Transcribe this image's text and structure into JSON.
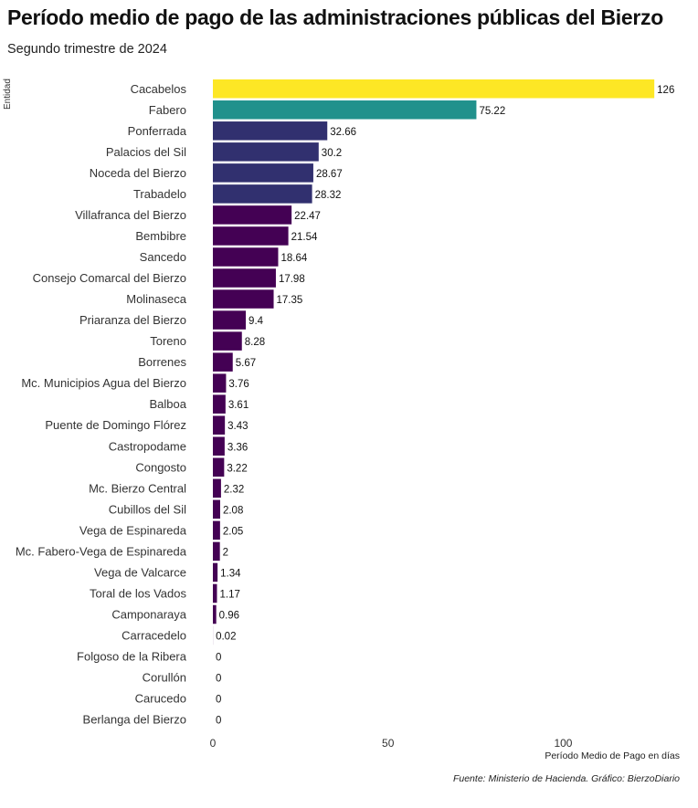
{
  "chart_data": {
    "type": "bar",
    "orientation": "horizontal",
    "title": "Período medio de pago de las administraciones públicas del Bierzo",
    "subtitle": "Segundo trimestre de 2024",
    "ylabel": "Entidad",
    "xlabel": "Período Medio de Pago en días",
    "caption": "Fuente: Ministerio de Hacienda. Gráfico: BierzoDiario",
    "xlim": [
      0,
      127
    ],
    "xticks": [
      0,
      50,
      100
    ],
    "grid": false,
    "categories": [
      "Cacabelos",
      "Fabero",
      "Ponferrada",
      "Palacios del Sil",
      "Noceda del Bierzo",
      "Trabadelo",
      "Villafranca del Bierzo",
      "Bembibre",
      "Sancedo",
      "Consejo Comarcal del Bierzo",
      "Molinaseca",
      "Priaranza del Bierzo",
      "Toreno",
      "Borrenes",
      "Mc. Municipios Agua del Bierzo",
      "Balboa",
      "Puente de Domingo Flórez",
      "Castropodame",
      "Congosto",
      "Mc. Bierzo Central",
      "Cubillos del Sil",
      "Vega de Espinareda",
      "Mc. Fabero-Vega de Espinareda",
      "Vega de Valcarce",
      "Toral de los Vados",
      "Camponaraya",
      "Carracedelo",
      "Folgoso de la Ribera",
      "Corullón",
      "Carucedo",
      "Berlanga del Bierzo"
    ],
    "values": [
      126,
      75.22,
      32.66,
      30.2,
      28.67,
      28.32,
      22.47,
      21.54,
      18.64,
      17.98,
      17.35,
      9.4,
      8.28,
      5.67,
      3.76,
      3.61,
      3.43,
      3.36,
      3.22,
      2.32,
      2.08,
      2.05,
      2,
      1.34,
      1.17,
      0.96,
      0.02,
      0,
      0,
      0,
      0
    ],
    "value_labels": [
      "126",
      "75.22",
      "32.66",
      "30.2",
      "28.67",
      "28.32",
      "22.47",
      "21.54",
      "18.64",
      "17.98",
      "17.35",
      "9.4",
      "8.28",
      "5.67",
      "3.76",
      "3.61",
      "3.43",
      "3.36",
      "3.22",
      "2.32",
      "2.08",
      "2.05",
      "2",
      "1.34",
      "1.17",
      "0.96",
      "0.02",
      "0",
      "0",
      "0",
      "0"
    ],
    "bar_colors": [
      "#fde725",
      "#21918c",
      "#31306f",
      "#31306f",
      "#31306f",
      "#31306f",
      "#440154",
      "#440154",
      "#440154",
      "#440154",
      "#440154",
      "#440154",
      "#440154",
      "#440154",
      "#440154",
      "#440154",
      "#440154",
      "#440154",
      "#440154",
      "#440154",
      "#440154",
      "#440154",
      "#440154",
      "#440154",
      "#440154",
      "#440154",
      "#440154",
      "#440154",
      "#440154",
      "#440154",
      "#440154"
    ]
  }
}
